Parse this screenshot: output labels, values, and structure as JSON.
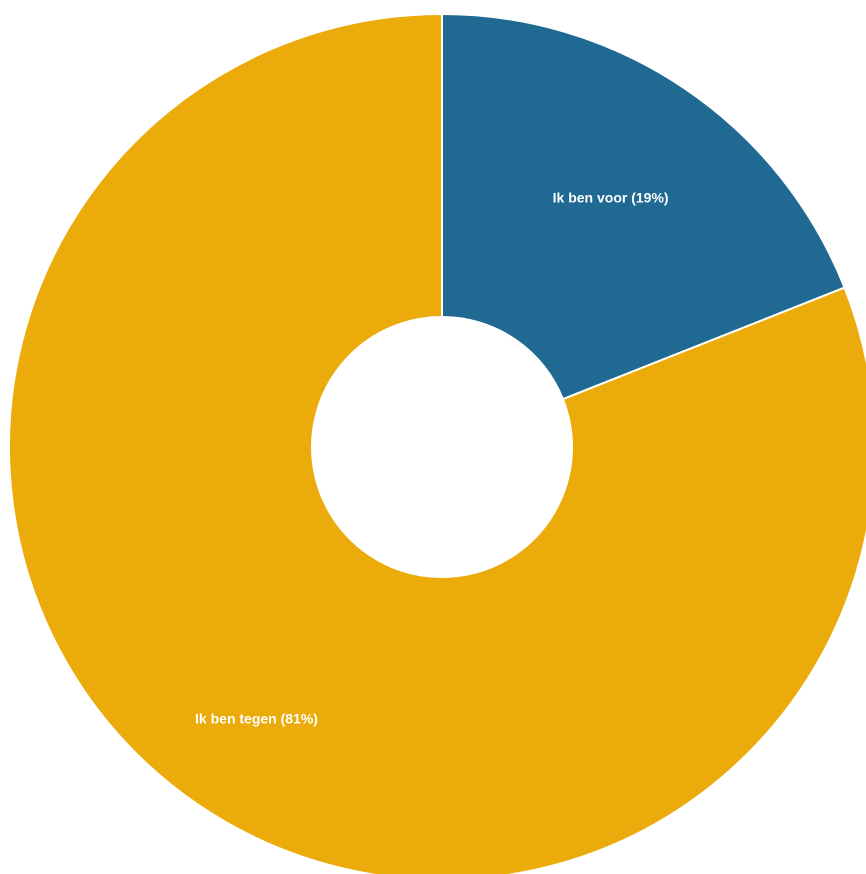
{
  "chart_data": {
    "type": "pie",
    "variant": "donut",
    "title": "",
    "slices": [
      {
        "label": "Ik ben voor (19%)",
        "value": 19,
        "color": "#1f6993"
      },
      {
        "label": "Ik ben tegen (81%)",
        "value": 81,
        "color": "#ebab0b"
      }
    ],
    "start": "12 o'clock",
    "direction": "clockwise",
    "slice_border_color": "#ffffff",
    "legend": "none"
  }
}
